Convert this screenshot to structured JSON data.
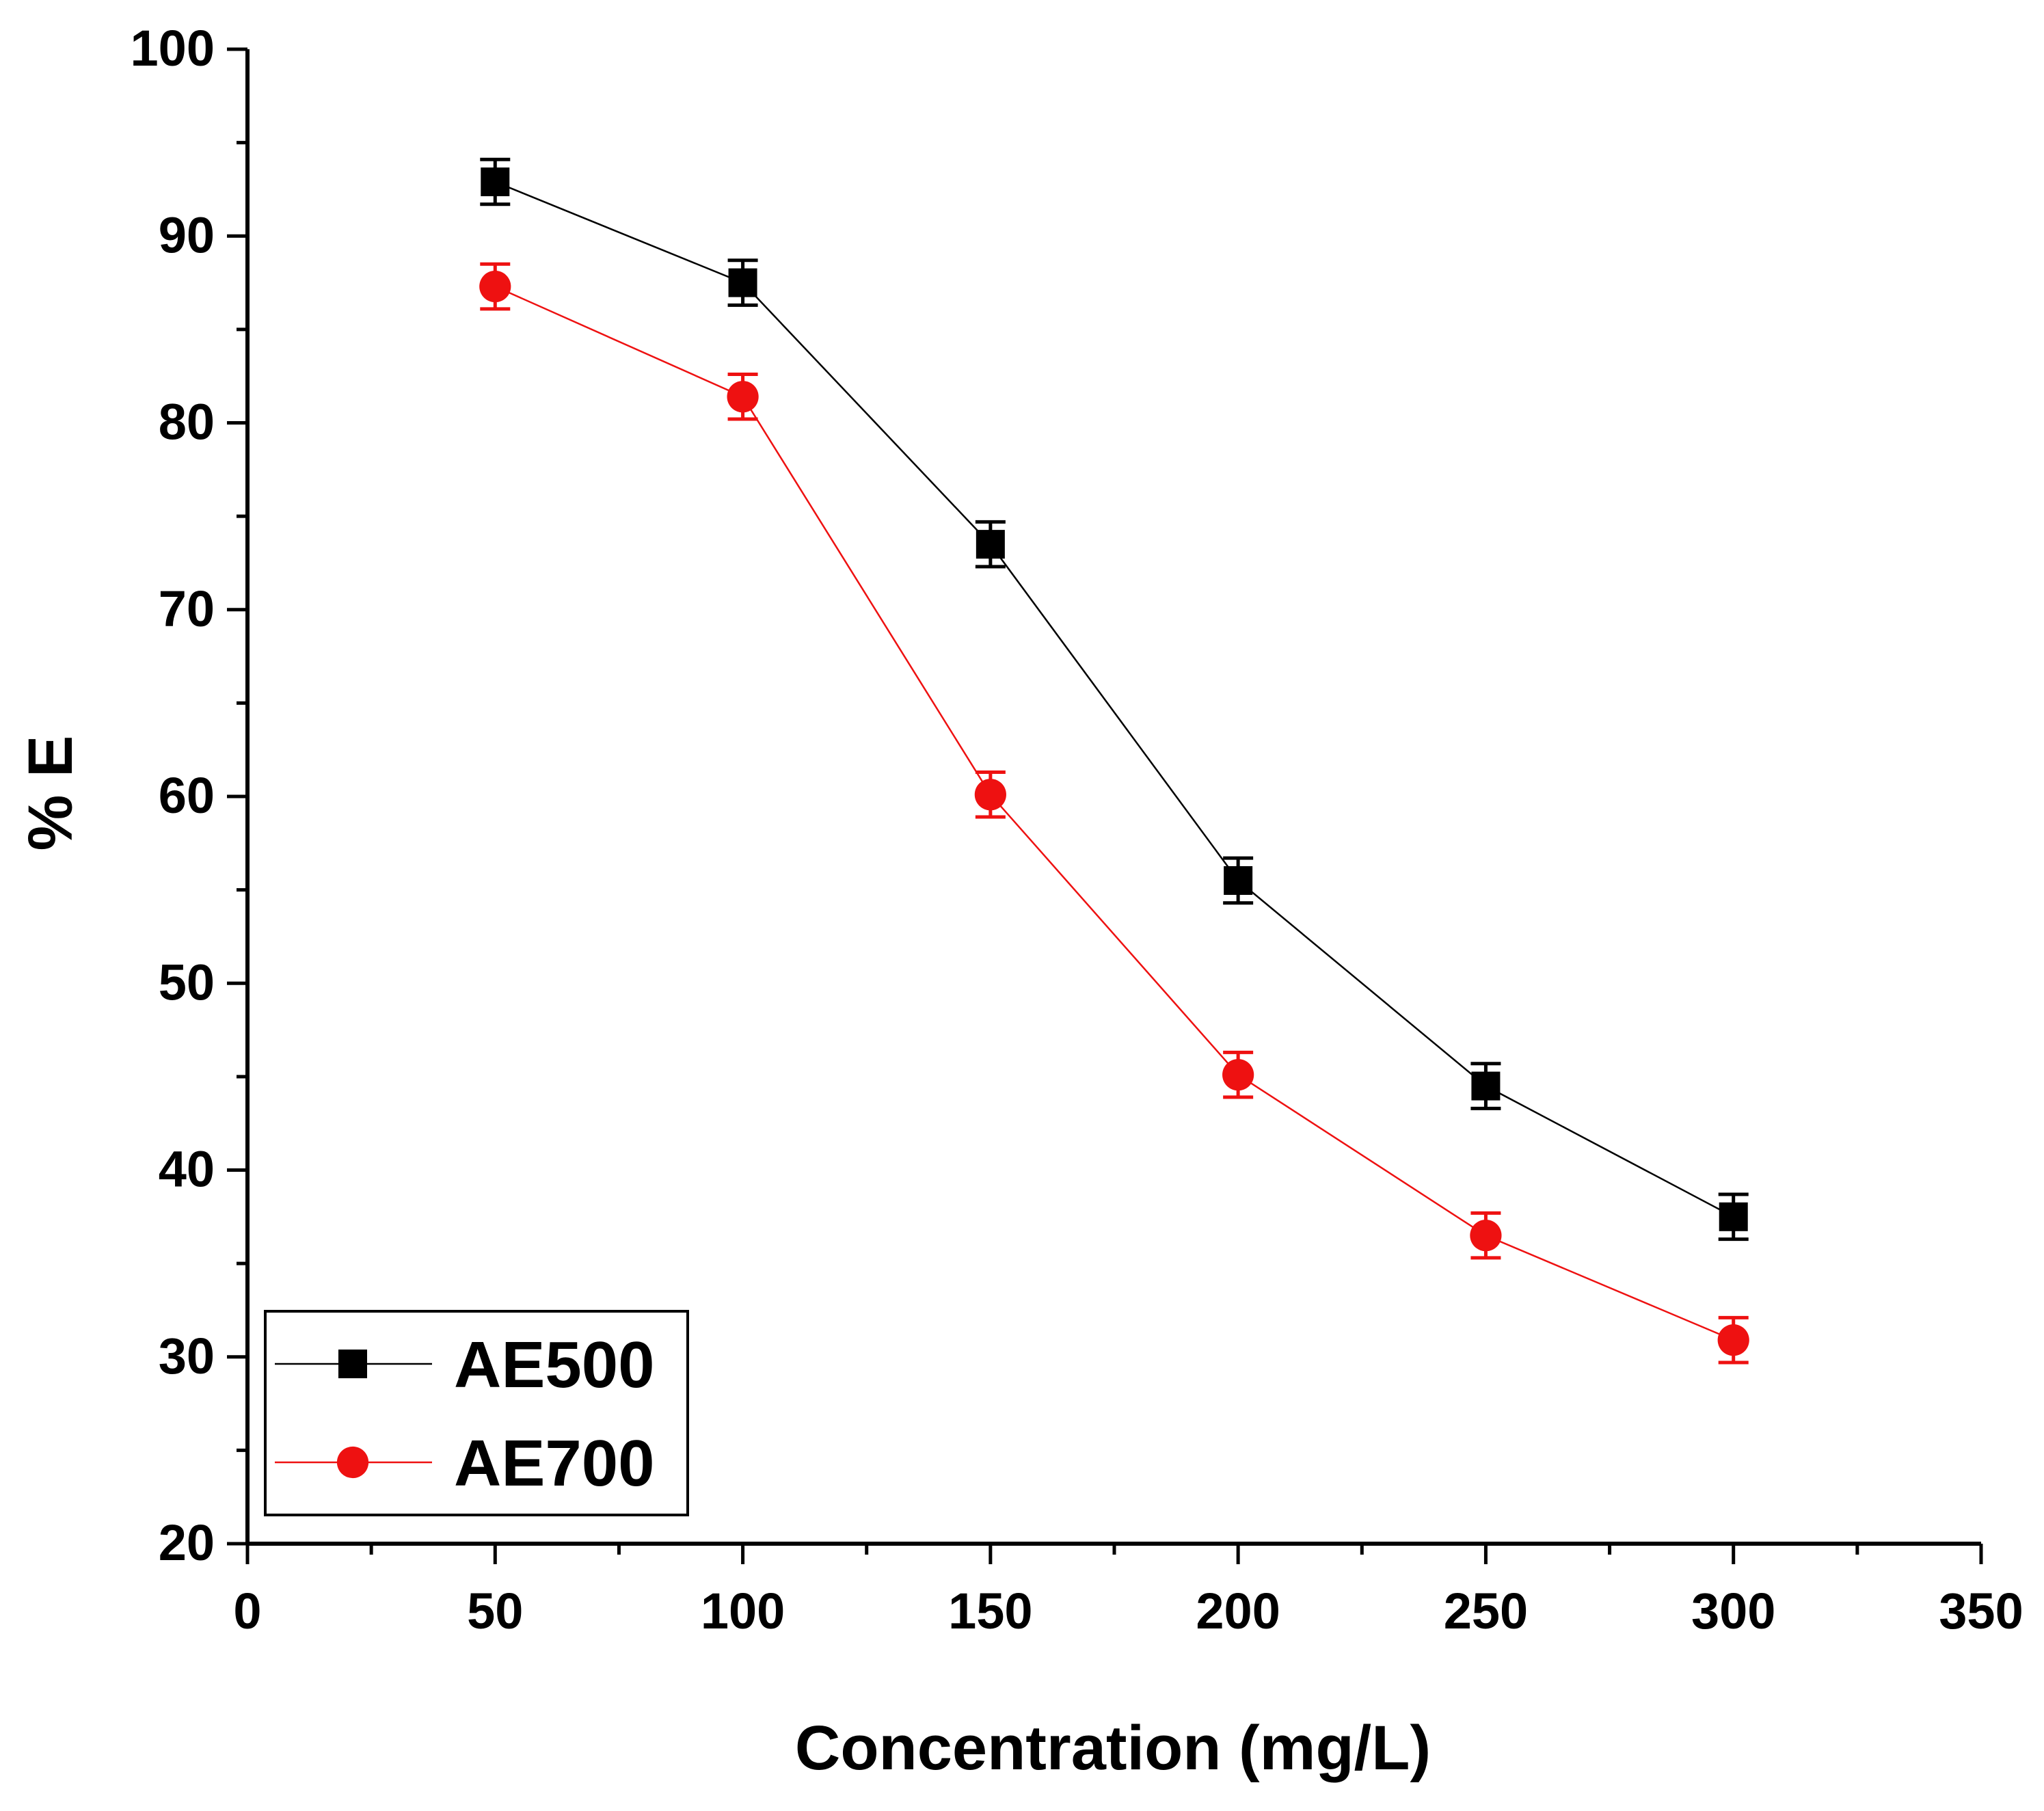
{
  "chart_data": {
    "type": "line",
    "title": "",
    "xlabel": "Concentration (mg/L)",
    "ylabel": "% E",
    "xlim": [
      0,
      350
    ],
    "ylim": [
      20,
      100
    ],
    "xticks": [
      0,
      50,
      100,
      150,
      200,
      250,
      300,
      350
    ],
    "yticks": [
      20,
      30,
      40,
      50,
      60,
      70,
      80,
      90,
      100
    ],
    "grid": false,
    "legend_position": "bottom-left",
    "series": [
      {
        "name": "AE500",
        "color": "#000000",
        "marker": "square",
        "x": [
          50,
          100,
          150,
          200,
          250,
          300
        ],
        "y": [
          92.9,
          87.5,
          73.5,
          55.5,
          44.5,
          37.5
        ],
        "error": [
          1.2,
          1.2,
          1.2,
          1.2,
          1.2,
          1.2
        ]
      },
      {
        "name": "AE700",
        "color": "#ee1111",
        "marker": "circle",
        "x": [
          50,
          100,
          150,
          200,
          250,
          300
        ],
        "y": [
          87.3,
          81.4,
          60.1,
          45.1,
          36.5,
          30.9
        ],
        "error": [
          1.2,
          1.2,
          1.2,
          1.2,
          1.2,
          1.2
        ]
      }
    ]
  }
}
